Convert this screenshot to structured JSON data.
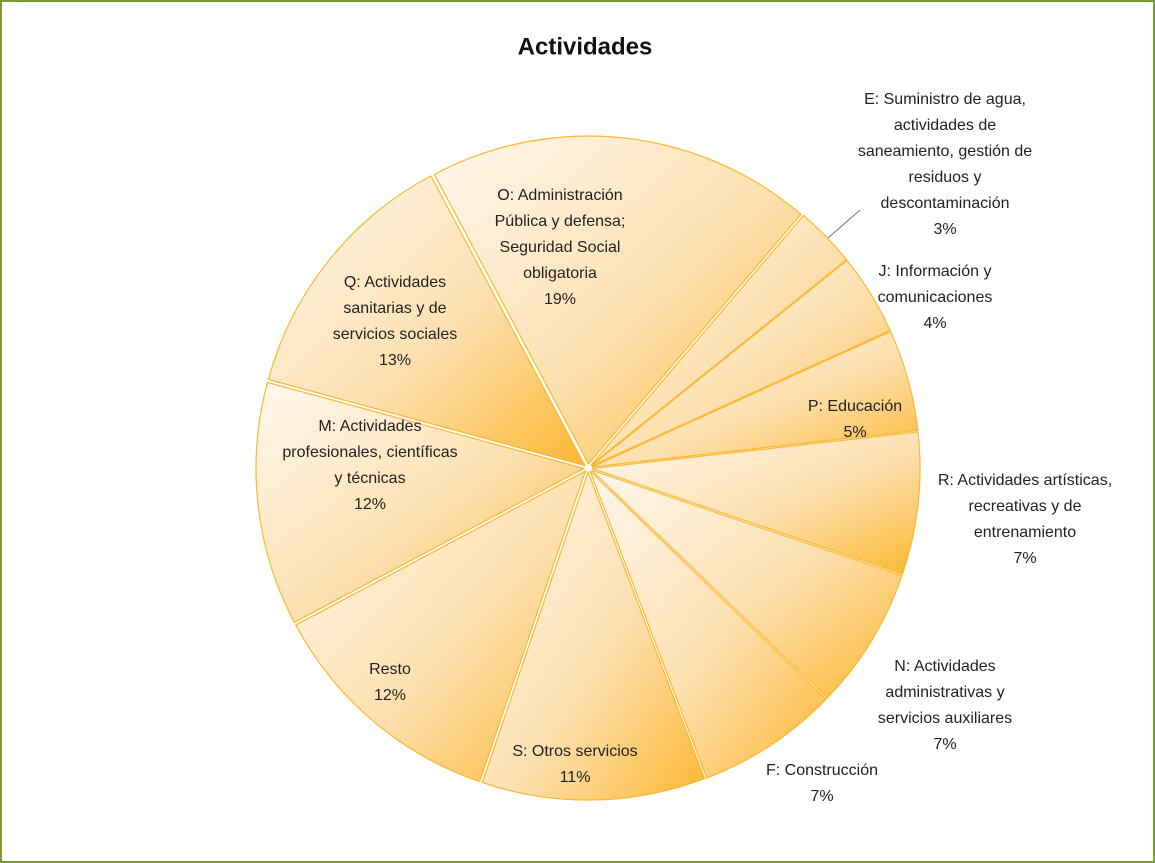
{
  "chart_data": {
    "type": "pie",
    "title": "Actividades",
    "categories": [
      "O: Administración Pública y defensa; Seguridad Social obligatoria",
      "E: Suministro de agua, actividades de saneamiento, gestión de residuos y descontaminación",
      "J: Información y comunicaciones",
      "P: Educación",
      "R: Actividades artísticas, recreativas y de entrenamiento",
      "N: Actividades administrativas y servicios auxiliares",
      "F: Construcción",
      "S: Otros servicios",
      "Resto",
      "M: Actividades profesionales, científicas y técnicas",
      "Q: Actividades sanitarias y de servicios sociales"
    ],
    "values": [
      19,
      3,
      4,
      5,
      7,
      7,
      7,
      11,
      12,
      12,
      13
    ],
    "value_labels": [
      "19%",
      "3%",
      "4%",
      "5%",
      "7%",
      "7%",
      "7%",
      "11%",
      "12%",
      "12%",
      "13%"
    ],
    "color": "#fbb731"
  }
}
